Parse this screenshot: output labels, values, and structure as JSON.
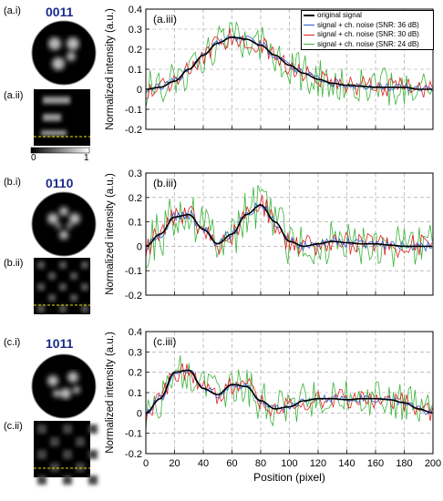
{
  "rows": [
    {
      "label_i": "(a.i)",
      "label_ii": "(a.ii)",
      "label_iii": "(a.iii)",
      "code": "0011",
      "ylim": [
        -0.2,
        0.4
      ],
      "yticks": [
        "0.4",
        "0.3",
        "0.2",
        "0.1",
        "0",
        "-0.1",
        "-0.2"
      ],
      "show_colorbar": true
    },
    {
      "label_i": "(b.i)",
      "label_ii": "(b.ii)",
      "label_iii": "(b.iii)",
      "code": "0110",
      "ylim": [
        -0.2,
        0.3
      ],
      "yticks": [
        "0.3",
        "0.2",
        "0.1",
        "0",
        "-0.1",
        "-0.2"
      ],
      "show_colorbar": false
    },
    {
      "label_i": "(c.i)",
      "label_ii": "(c.ii)",
      "label_iii": "(c.iii)",
      "code": "1011",
      "ylim": [
        -0.2,
        0.4
      ],
      "yticks": [
        "0.4",
        "0.3",
        "0.2",
        "0.1",
        "0",
        "-0.1",
        "-0.2"
      ],
      "show_colorbar": false
    }
  ],
  "colorbar": {
    "min_label": "0",
    "max_label": "1"
  },
  "ylabel": "Normalized intensity (a.u.)",
  "xlabel": "Position (pixel)",
  "xticks": [
    "0",
    "20",
    "40",
    "60",
    "80",
    "100",
    "120",
    "140",
    "160",
    "180",
    "200"
  ],
  "legend": [
    {
      "name": "original signal",
      "color": "#000000"
    },
    {
      "name": "signal + ch. noise (SNR: 36 dB)",
      "color": "#2a5bd7"
    },
    {
      "name": "signal + ch. noise (SNR: 30 dB)",
      "color": "#e02020"
    },
    {
      "name": "signal + ch. noise (SNR: 24 dB)",
      "color": "#3cb43c"
    }
  ],
  "chart_data": [
    {
      "type": "line",
      "title": "(a.iii)",
      "xlabel": "",
      "ylabel": "Normalized intensity (a.u.)",
      "xlim": [
        0,
        200
      ],
      "ylim": [
        -0.2,
        0.4
      ],
      "grid": true,
      "legend_position": "top-right",
      "x": [
        0,
        10,
        20,
        30,
        40,
        50,
        60,
        70,
        80,
        90,
        100,
        110,
        120,
        130,
        140,
        150,
        160,
        170,
        180,
        190,
        200
      ],
      "series": [
        {
          "name": "original signal",
          "noise": 0,
          "values": [
            0.0,
            0.01,
            0.04,
            0.1,
            0.17,
            0.23,
            0.26,
            0.25,
            0.22,
            0.17,
            0.12,
            0.08,
            0.05,
            0.03,
            0.02,
            0.015,
            0.01,
            0.01,
            0.01,
            0.0,
            0.0
          ]
        },
        {
          "name": "signal + ch. noise (SNR: 36 dB)",
          "noise": 0.012
        },
        {
          "name": "signal + ch. noise (SNR: 30 dB)",
          "noise": 0.03
        },
        {
          "name": "signal + ch. noise (SNR: 24 dB)",
          "noise": 0.06
        }
      ]
    },
    {
      "type": "line",
      "title": "(b.iii)",
      "xlabel": "",
      "ylabel": "Normalized intensity (a.u.)",
      "xlim": [
        0,
        200
      ],
      "ylim": [
        -0.2,
        0.3
      ],
      "grid": true,
      "x": [
        0,
        10,
        20,
        30,
        40,
        50,
        60,
        70,
        80,
        90,
        100,
        110,
        120,
        130,
        140,
        150,
        160,
        170,
        180,
        190,
        200
      ],
      "series": [
        {
          "name": "original signal",
          "noise": 0,
          "values": [
            0.0,
            0.05,
            0.12,
            0.13,
            0.07,
            0.01,
            0.05,
            0.13,
            0.17,
            0.1,
            0.02,
            0.0,
            0.01,
            0.02,
            0.015,
            0.01,
            0.01,
            0.005,
            0.0,
            0.0,
            0.0
          ]
        },
        {
          "name": "signal + ch. noise (SNR: 36 dB)",
          "noise": 0.012
        },
        {
          "name": "signal + ch. noise (SNR: 30 dB)",
          "noise": 0.03
        },
        {
          "name": "signal + ch. noise (SNR: 24 dB)",
          "noise": 0.06
        }
      ]
    },
    {
      "type": "line",
      "title": "(c.iii)",
      "xlabel": "Position (pixel)",
      "ylabel": "Normalized intensity (a.u.)",
      "xlim": [
        0,
        200
      ],
      "ylim": [
        -0.2,
        0.4
      ],
      "grid": true,
      "x": [
        0,
        10,
        20,
        30,
        40,
        50,
        60,
        70,
        80,
        90,
        100,
        110,
        120,
        130,
        140,
        150,
        160,
        170,
        180,
        190,
        200
      ],
      "series": [
        {
          "name": "original signal",
          "noise": 0,
          "values": [
            0.0,
            0.07,
            0.2,
            0.21,
            0.12,
            0.09,
            0.14,
            0.13,
            0.06,
            0.02,
            0.03,
            0.06,
            0.07,
            0.07,
            0.065,
            0.07,
            0.07,
            0.065,
            0.05,
            0.02,
            0.0
          ]
        },
        {
          "name": "signal + ch. noise (SNR: 36 dB)",
          "noise": 0.012
        },
        {
          "name": "signal + ch. noise (SNR: 30 dB)",
          "noise": 0.03
        },
        {
          "name": "signal + ch. noise (SNR: 24 dB)",
          "noise": 0.06
        }
      ]
    }
  ]
}
